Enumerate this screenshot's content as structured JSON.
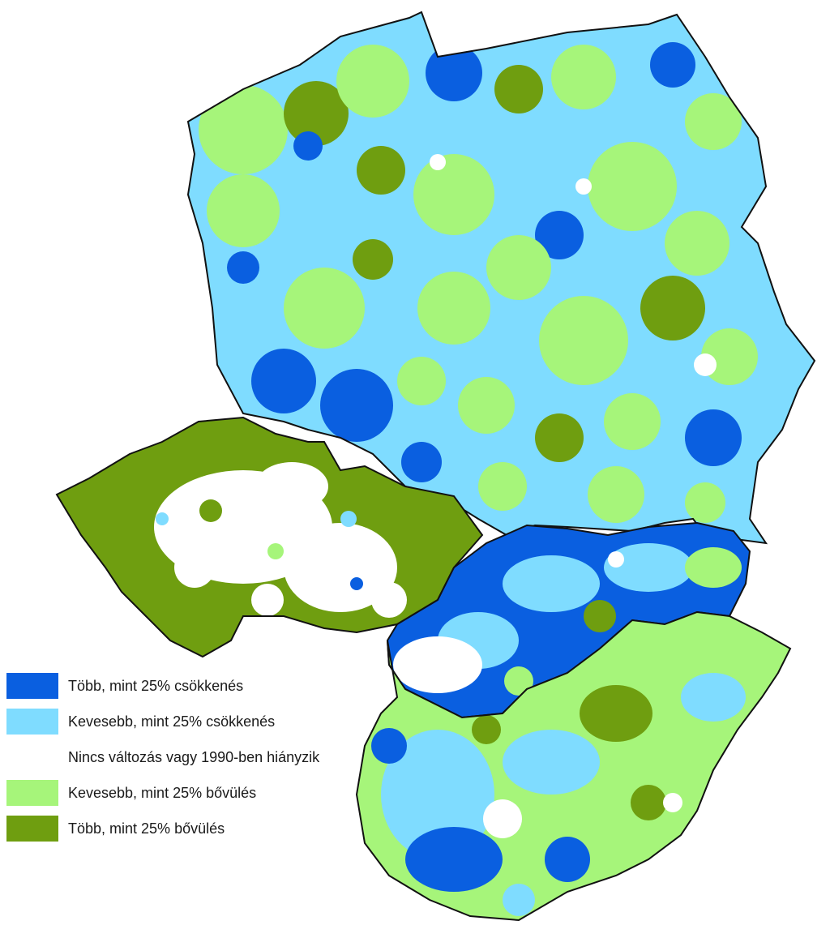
{
  "legend": {
    "items": [
      {
        "label": "Több, mint 25% csökkenés",
        "color": "#0a5fe0"
      },
      {
        "label": "Kevesebb, mint 25% csökkenés",
        "color": "#7fdcff"
      },
      {
        "label": "Nincs változás vagy 1990-ben hiányzik",
        "color": "#ffffff"
      },
      {
        "label": "Kevesebb, mint 25% bővülés",
        "color": "#a6f57a"
      },
      {
        "label": "Több, mint 25% bővülés",
        "color": "#6f9e10"
      }
    ]
  },
  "regions": [
    {
      "name": "poland",
      "dominant": "Kevesebb, mint 25% csökkenés"
    },
    {
      "name": "czechia",
      "dominant": "Több, mint 25% bővülés"
    },
    {
      "name": "slovakia",
      "dominant": "Több, mint 25% csökkenés"
    },
    {
      "name": "hungary",
      "dominant": "Kevesebb, mint 25% bővülés"
    }
  ]
}
